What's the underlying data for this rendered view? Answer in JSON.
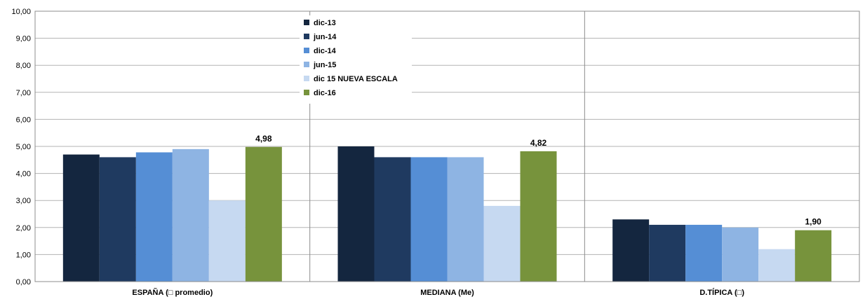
{
  "chart_data": {
    "type": "bar",
    "categories": [
      "ESPAÑA (□ promedio)",
      "MEDIANA (Me)",
      "D.TÍPICA (□)"
    ],
    "series": [
      {
        "name": "dic-13",
        "color": "#14263f",
        "values": [
          4.7,
          5.0,
          2.3
        ]
      },
      {
        "name": "jun-14",
        "color": "#1f3a60",
        "values": [
          4.6,
          4.6,
          2.1
        ]
      },
      {
        "name": "dic-14",
        "color": "#558ed5",
        "values": [
          4.78,
          4.6,
          2.1
        ]
      },
      {
        "name": "jun-15",
        "color": "#8eb4e3",
        "values": [
          4.9,
          4.6,
          2.0
        ]
      },
      {
        "name": "dic 15 NUEVA ESCALA",
        "color": "#c6d9f1",
        "values": [
          3.0,
          2.8,
          1.2
        ]
      },
      {
        "name": "dic-16",
        "color": "#77933c",
        "values": [
          4.98,
          4.82,
          1.9
        ]
      }
    ],
    "data_labels": [
      {
        "series": "dic-16",
        "category_index": 0,
        "text": "4,98"
      },
      {
        "series": "dic-16",
        "category_index": 1,
        "text": "4,82"
      },
      {
        "series": "dic-16",
        "category_index": 2,
        "text": "1,90"
      }
    ],
    "y_ticks": [
      "0,00",
      "1,00",
      "2,00",
      "3,00",
      "4,00",
      "5,00",
      "6,00",
      "7,00",
      "8,00",
      "9,00",
      "10,00"
    ],
    "ylim": [
      0,
      10
    ],
    "grid": true,
    "legend_position": "top-center",
    "title": "",
    "xlabel": "",
    "ylabel": ""
  }
}
